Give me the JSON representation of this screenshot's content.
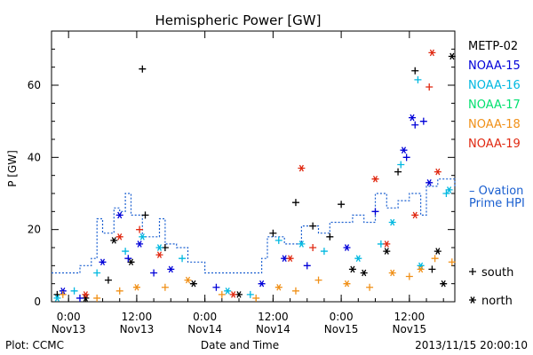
{
  "chart_data": {
    "type": "scatter",
    "title": "Hemispheric Power [GW]",
    "ylabel": "P [GW]",
    "xlabel": "Date and Time",
    "xlim": [
      "2013-11-12T21:00",
      "2013-11-15T20:00"
    ],
    "ylim": [
      0,
      75
    ],
    "y_ticks": [
      0,
      20,
      40,
      60
    ],
    "x_ticks": [
      {
        "t": "2013-11-13T00:00",
        "line1": "0:00",
        "line2": "Nov13"
      },
      {
        "t": "2013-11-13T12:00",
        "line1": "12:00",
        "line2": "Nov13"
      },
      {
        "t": "2013-11-14T00:00",
        "line1": "0:00",
        "line2": "Nov14"
      },
      {
        "t": "2013-11-14T12:00",
        "line1": "12:00",
        "line2": "Nov14"
      },
      {
        "t": "2013-11-15T00:00",
        "line1": "0:00",
        "line2": "Nov15"
      },
      {
        "t": "2013-11-15T12:00",
        "line1": "12:00",
        "line2": "Nov15"
      }
    ],
    "grid": false,
    "legend_position": "right",
    "series": [
      {
        "name": "METP-02",
        "color": "#000000",
        "points": [
          {
            "t": "2013-11-12T22:00",
            "y": 2,
            "m": "south"
          },
          {
            "t": "2013-11-13T03:00",
            "y": 1,
            "m": "north"
          },
          {
            "t": "2013-11-13T07:00",
            "y": 6,
            "m": "south"
          },
          {
            "t": "2013-11-13T08:00",
            "y": 17,
            "m": "north"
          },
          {
            "t": "2013-11-13T11:00",
            "y": 11,
            "m": "north"
          },
          {
            "t": "2013-11-13T13:00",
            "y": 64.5,
            "m": "south"
          },
          {
            "t": "2013-11-13T13:30",
            "y": 24,
            "m": "south"
          },
          {
            "t": "2013-11-13T17:00",
            "y": 15,
            "m": "south"
          },
          {
            "t": "2013-11-13T22:00",
            "y": 5,
            "m": "north"
          },
          {
            "t": "2013-11-14T06:00",
            "y": 2,
            "m": "north"
          },
          {
            "t": "2013-11-14T12:00",
            "y": 19,
            "m": "south"
          },
          {
            "t": "2013-11-14T16:00",
            "y": 27.5,
            "m": "south"
          },
          {
            "t": "2013-11-14T19:00",
            "y": 21,
            "m": "south"
          },
          {
            "t": "2013-11-14T22:00",
            "y": 18,
            "m": "south"
          },
          {
            "t": "2013-11-15T00:00",
            "y": 27,
            "m": "south"
          },
          {
            "t": "2013-11-15T02:00",
            "y": 9,
            "m": "north"
          },
          {
            "t": "2013-11-15T04:00",
            "y": 8,
            "m": "north"
          },
          {
            "t": "2013-11-15T08:00",
            "y": 14,
            "m": "north"
          },
          {
            "t": "2013-11-15T10:00",
            "y": 36,
            "m": "south"
          },
          {
            "t": "2013-11-15T13:00",
            "y": 64,
            "m": "south"
          },
          {
            "t": "2013-11-15T16:00",
            "y": 9,
            "m": "south"
          },
          {
            "t": "2013-11-15T17:00",
            "y": 14,
            "m": "north"
          },
          {
            "t": "2013-11-15T18:00",
            "y": 5,
            "m": "north"
          },
          {
            "t": "2013-11-15T19:30",
            "y": 68,
            "m": "north"
          }
        ]
      },
      {
        "name": "NOAA-15",
        "color": "#0000d8",
        "points": [
          {
            "t": "2013-11-12T23:00",
            "y": 3,
            "m": "north"
          },
          {
            "t": "2013-11-13T02:00",
            "y": 1,
            "m": "south"
          },
          {
            "t": "2013-11-13T06:00",
            "y": 11,
            "m": "north"
          },
          {
            "t": "2013-11-13T09:00",
            "y": 24,
            "m": "north"
          },
          {
            "t": "2013-11-13T10:30",
            "y": 12,
            "m": "south"
          },
          {
            "t": "2013-11-13T12:30",
            "y": 16,
            "m": "north"
          },
          {
            "t": "2013-11-13T15:00",
            "y": 8,
            "m": "south"
          },
          {
            "t": "2013-11-13T18:00",
            "y": 9,
            "m": "north"
          },
          {
            "t": "2013-11-14T02:00",
            "y": 4,
            "m": "south"
          },
          {
            "t": "2013-11-14T10:00",
            "y": 5,
            "m": "north"
          },
          {
            "t": "2013-11-14T14:00",
            "y": 12,
            "m": "north"
          },
          {
            "t": "2013-11-14T18:00",
            "y": 10,
            "m": "south"
          },
          {
            "t": "2013-11-15T01:00",
            "y": 15,
            "m": "north"
          },
          {
            "t": "2013-11-15T06:00",
            "y": 25,
            "m": "south"
          },
          {
            "t": "2013-11-15T11:00",
            "y": 42,
            "m": "north"
          },
          {
            "t": "2013-11-15T12:30",
            "y": 51,
            "m": "north"
          },
          {
            "t": "2013-11-15T13:00",
            "y": 49,
            "m": "south"
          },
          {
            "t": "2013-11-15T14:30",
            "y": 50,
            "m": "south"
          },
          {
            "t": "2013-11-15T15:30",
            "y": 33,
            "m": "north"
          },
          {
            "t": "2013-11-15T11:30",
            "y": 40,
            "m": "south"
          }
        ]
      },
      {
        "name": "NOAA-16",
        "color": "#00b8e0",
        "points": [
          {
            "t": "2013-11-12T22:00",
            "y": 1,
            "m": "north"
          },
          {
            "t": "2013-11-13T01:00",
            "y": 3,
            "m": "south"
          },
          {
            "t": "2013-11-13T05:00",
            "y": 8,
            "m": "south"
          },
          {
            "t": "2013-11-13T10:00",
            "y": 14,
            "m": "south"
          },
          {
            "t": "2013-11-13T13:00",
            "y": 18,
            "m": "north"
          },
          {
            "t": "2013-11-13T16:00",
            "y": 15,
            "m": "north"
          },
          {
            "t": "2013-11-13T20:00",
            "y": 12,
            "m": "south"
          },
          {
            "t": "2013-11-14T04:00",
            "y": 3,
            "m": "north"
          },
          {
            "t": "2013-11-14T08:00",
            "y": 2,
            "m": "south"
          },
          {
            "t": "2013-11-14T13:00",
            "y": 17,
            "m": "south"
          },
          {
            "t": "2013-11-14T17:00",
            "y": 16,
            "m": "north"
          },
          {
            "t": "2013-11-14T21:00",
            "y": 14,
            "m": "south"
          },
          {
            "t": "2013-11-15T03:00",
            "y": 12,
            "m": "north"
          },
          {
            "t": "2013-11-15T07:00",
            "y": 16,
            "m": "south"
          },
          {
            "t": "2013-11-15T09:00",
            "y": 22,
            "m": "north"
          },
          {
            "t": "2013-11-15T10:30",
            "y": 38,
            "m": "south"
          },
          {
            "t": "2013-11-15T13:30",
            "y": 61.5,
            "m": "south"
          },
          {
            "t": "2013-11-15T14:00",
            "y": 10,
            "m": "north"
          },
          {
            "t": "2013-11-15T18:30",
            "y": 30,
            "m": "south"
          },
          {
            "t": "2013-11-15T19:00",
            "y": 31,
            "m": "north"
          }
        ]
      },
      {
        "name": "NOAA-17",
        "color": "#00e070",
        "points": []
      },
      {
        "name": "NOAA-18",
        "color": "#f09018",
        "points": [
          {
            "t": "2013-11-12T23:00",
            "y": 2,
            "m": "south"
          },
          {
            "t": "2013-11-13T05:00",
            "y": 1,
            "m": "south"
          },
          {
            "t": "2013-11-13T09:00",
            "y": 3,
            "m": "south"
          },
          {
            "t": "2013-11-13T12:00",
            "y": 4,
            "m": "north"
          },
          {
            "t": "2013-11-13T17:00",
            "y": 4,
            "m": "south"
          },
          {
            "t": "2013-11-13T21:00",
            "y": 6,
            "m": "north"
          },
          {
            "t": "2013-11-14T03:00",
            "y": 2,
            "m": "south"
          },
          {
            "t": "2013-11-14T09:00",
            "y": 1,
            "m": "south"
          },
          {
            "t": "2013-11-14T13:00",
            "y": 4,
            "m": "north"
          },
          {
            "t": "2013-11-14T16:00",
            "y": 3,
            "m": "south"
          },
          {
            "t": "2013-11-14T20:00",
            "y": 6,
            "m": "south"
          },
          {
            "t": "2013-11-15T01:00",
            "y": 5,
            "m": "north"
          },
          {
            "t": "2013-11-15T05:00",
            "y": 4,
            "m": "south"
          },
          {
            "t": "2013-11-15T09:00",
            "y": 8,
            "m": "north"
          },
          {
            "t": "2013-11-15T12:00",
            "y": 7,
            "m": "south"
          },
          {
            "t": "2013-11-15T14:00",
            "y": 9,
            "m": "north"
          },
          {
            "t": "2013-11-15T16:30",
            "y": 12,
            "m": "south"
          },
          {
            "t": "2013-11-15T19:30",
            "y": 11,
            "m": "south"
          }
        ]
      },
      {
        "name": "NOAA-19",
        "color": "#e02810",
        "points": [
          {
            "t": "2013-11-13T03:00",
            "y": 2,
            "m": "north"
          },
          {
            "t": "2013-11-13T09:00",
            "y": 18,
            "m": "north"
          },
          {
            "t": "2013-11-13T12:30",
            "y": 20,
            "m": "south"
          },
          {
            "t": "2013-11-13T16:00",
            "y": 13,
            "m": "north"
          },
          {
            "t": "2013-11-14T05:00",
            "y": 2,
            "m": "north"
          },
          {
            "t": "2013-11-14T15:00",
            "y": 12,
            "m": "north"
          },
          {
            "t": "2013-11-14T17:00",
            "y": 37,
            "m": "north"
          },
          {
            "t": "2013-11-14T19:00",
            "y": 15,
            "m": "south"
          },
          {
            "t": "2013-11-15T06:00",
            "y": 34,
            "m": "north"
          },
          {
            "t": "2013-11-15T08:00",
            "y": 16,
            "m": "north"
          },
          {
            "t": "2013-11-15T15:30",
            "y": 59.5,
            "m": "south"
          },
          {
            "t": "2013-11-15T16:00",
            "y": 69,
            "m": "north"
          },
          {
            "t": "2013-11-15T17:00",
            "y": 36,
            "m": "north"
          },
          {
            "t": "2013-11-15T13:00",
            "y": 24,
            "m": "north"
          }
        ]
      }
    ],
    "ovation": {
      "name_line1": "Ovation",
      "name_line2": "Prime HPI",
      "color": "#1a5fd0",
      "line_style": "dashed",
      "points": [
        {
          "t": "2013-11-12T21:00",
          "y": 8
        },
        {
          "t": "2013-11-13T00:00",
          "y": 8
        },
        {
          "t": "2013-11-13T02:00",
          "y": 10
        },
        {
          "t": "2013-11-13T04:00",
          "y": 12
        },
        {
          "t": "2013-11-13T05:00",
          "y": 23
        },
        {
          "t": "2013-11-13T06:00",
          "y": 19
        },
        {
          "t": "2013-11-13T08:00",
          "y": 26
        },
        {
          "t": "2013-11-13T09:00",
          "y": 25
        },
        {
          "t": "2013-11-13T10:00",
          "y": 30
        },
        {
          "t": "2013-11-13T11:00",
          "y": 24
        },
        {
          "t": "2013-11-13T13:00",
          "y": 18
        },
        {
          "t": "2013-11-13T16:00",
          "y": 23
        },
        {
          "t": "2013-11-13T17:00",
          "y": 16
        },
        {
          "t": "2013-11-13T19:00",
          "y": 15
        },
        {
          "t": "2013-11-13T21:00",
          "y": 11
        },
        {
          "t": "2013-11-14T00:00",
          "y": 8
        },
        {
          "t": "2013-11-14T06:00",
          "y": 8
        },
        {
          "t": "2013-11-14T10:00",
          "y": 12
        },
        {
          "t": "2013-11-14T11:00",
          "y": 18
        },
        {
          "t": "2013-11-14T14:00",
          "y": 16
        },
        {
          "t": "2013-11-14T17:00",
          "y": 21
        },
        {
          "t": "2013-11-14T20:00",
          "y": 19
        },
        {
          "t": "2013-11-14T22:00",
          "y": 22
        },
        {
          "t": "2013-11-15T02:00",
          "y": 24
        },
        {
          "t": "2013-11-15T04:00",
          "y": 22
        },
        {
          "t": "2013-11-15T06:00",
          "y": 30
        },
        {
          "t": "2013-11-15T08:00",
          "y": 26
        },
        {
          "t": "2013-11-15T10:00",
          "y": 28
        },
        {
          "t": "2013-11-15T12:00",
          "y": 30
        },
        {
          "t": "2013-11-15T14:00",
          "y": 24
        },
        {
          "t": "2013-11-15T15:00",
          "y": 32
        },
        {
          "t": "2013-11-15T17:00",
          "y": 34
        },
        {
          "t": "2013-11-15T20:00",
          "y": 32
        }
      ]
    },
    "marker_legend": {
      "south": "south",
      "north": "north"
    },
    "footer_left": "Plot: CCMC",
    "footer_right": "2013/11/15 20:00:10"
  }
}
